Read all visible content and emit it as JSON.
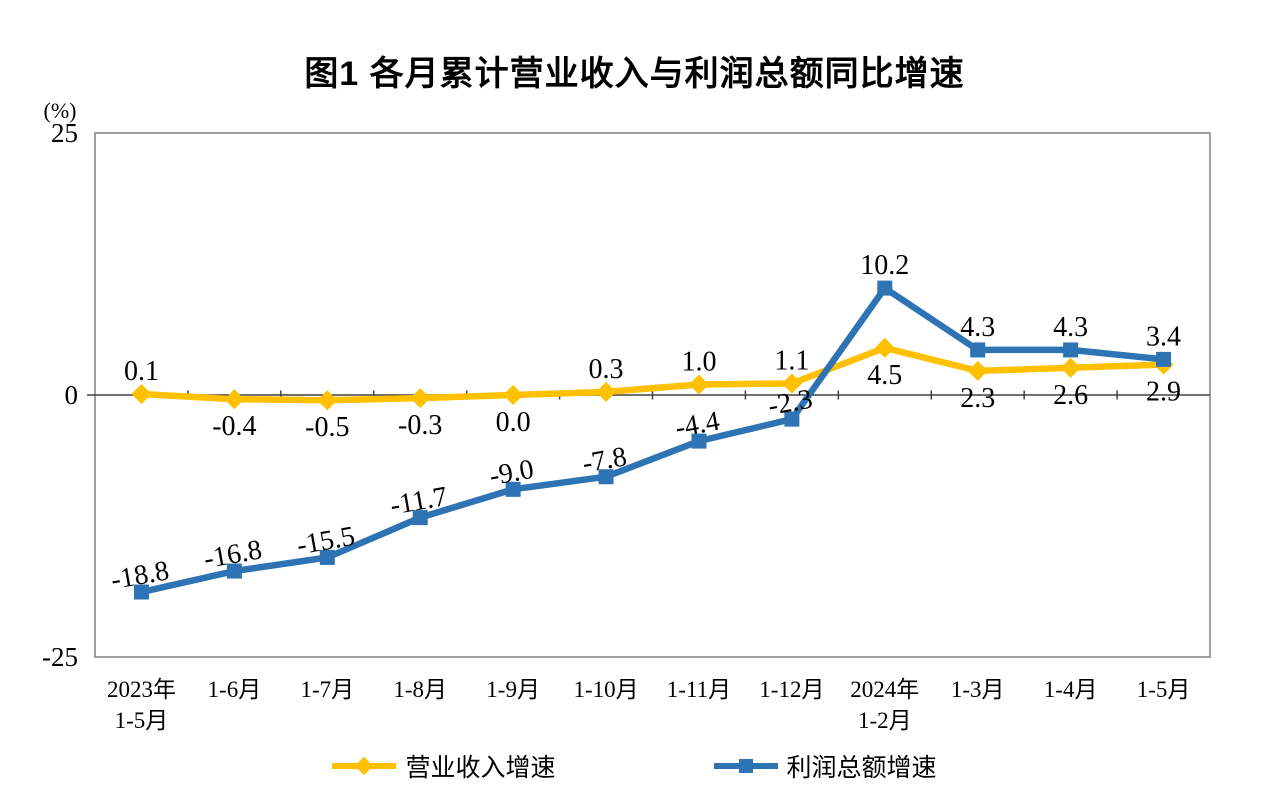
{
  "chart_data": {
    "type": "line",
    "title": "图1  各月累计营业收入与利润总额同比增速",
    "unit_label": "(%)",
    "categories": [
      [
        "2023年",
        "1-5月"
      ],
      [
        "1-6月"
      ],
      [
        "1-7月"
      ],
      [
        "1-8月"
      ],
      [
        "1-9月"
      ],
      [
        "1-10月"
      ],
      [
        "1-11月"
      ],
      [
        "1-12月"
      ],
      [
        "2024年",
        "1-2月"
      ],
      [
        "1-3月"
      ],
      [
        "1-4月"
      ],
      [
        "1-5月"
      ]
    ],
    "ylim": [
      -25,
      25
    ],
    "yticks": [
      25,
      0,
      -25
    ],
    "grid": false,
    "legend_position": "bottom",
    "axis_color": "#404040",
    "border_color": "#7f7f7f",
    "label_color": "#000000",
    "series": [
      {
        "key": "revenue",
        "name": "营业收入增速",
        "color": "#FFC000",
        "marker": "diamond",
        "values": [
          0.1,
          -0.4,
          -0.5,
          -0.3,
          0.0,
          0.3,
          1.0,
          1.1,
          4.5,
          2.3,
          2.6,
          2.9
        ],
        "label_side": [
          "above",
          "below",
          "below",
          "below",
          "below",
          "above",
          "above",
          "above",
          "below",
          "below",
          "below",
          "below"
        ],
        "rotated_label_indices": []
      },
      {
        "key": "profit",
        "name": "利润总额增速",
        "color": "#2E74B5",
        "marker": "square",
        "values": [
          -18.8,
          -16.8,
          -15.5,
          -11.7,
          -9.0,
          -7.8,
          -4.4,
          -2.3,
          10.2,
          4.3,
          4.3,
          3.4
        ],
        "label_side": [
          "above",
          "above",
          "above",
          "above",
          "above",
          "above",
          "above",
          "above",
          "above",
          "above",
          "above",
          "above"
        ],
        "rotated_label_indices": [
          0,
          1,
          2,
          3,
          4,
          5,
          6,
          7
        ]
      }
    ]
  }
}
